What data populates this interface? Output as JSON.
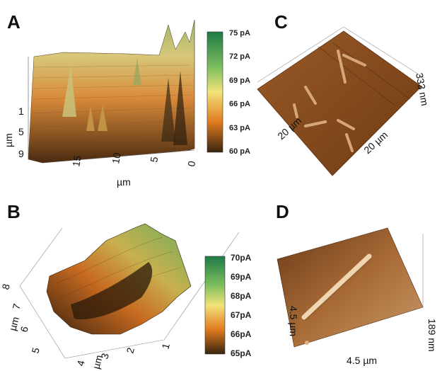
{
  "panels": {
    "A": {
      "letter": "A",
      "y_ticks": [
        "1",
        "5",
        "9"
      ],
      "y_unit": "µm",
      "x_ticks": [
        "15",
        "10",
        "5",
        "0"
      ],
      "x_unit": "µm",
      "colorbar": [
        "75 pA",
        "72 pA",
        "69 pA",
        "66 pA",
        "63 pA",
        "60 pA"
      ]
    },
    "B": {
      "letter": "B",
      "y_ticks": [
        "8",
        "7",
        "6",
        "5"
      ],
      "y_unit": "µm",
      "x_ticks": [
        "4",
        "3",
        "2",
        "1"
      ],
      "x_unit": "µm",
      "colorbar": [
        "70pA",
        "69pA",
        "68pA",
        "67pA",
        "66pA",
        "65pA"
      ]
    },
    "C": {
      "letter": "C",
      "z_label": "333 nm",
      "side_left": "20 µm",
      "side_right": "20 µm"
    },
    "D": {
      "letter": "D",
      "z_label": "189 nm",
      "side_left": "4.5 µm",
      "side_bottom": "4.5 µm"
    }
  },
  "colors": {
    "colorbar_top": "#1e7a45",
    "colorbar_mid": "#f2e27a",
    "colorbar_low": "#e07a1e",
    "colorbar_bottom": "#3a2410",
    "afm_brown": "#8a4a1c"
  }
}
